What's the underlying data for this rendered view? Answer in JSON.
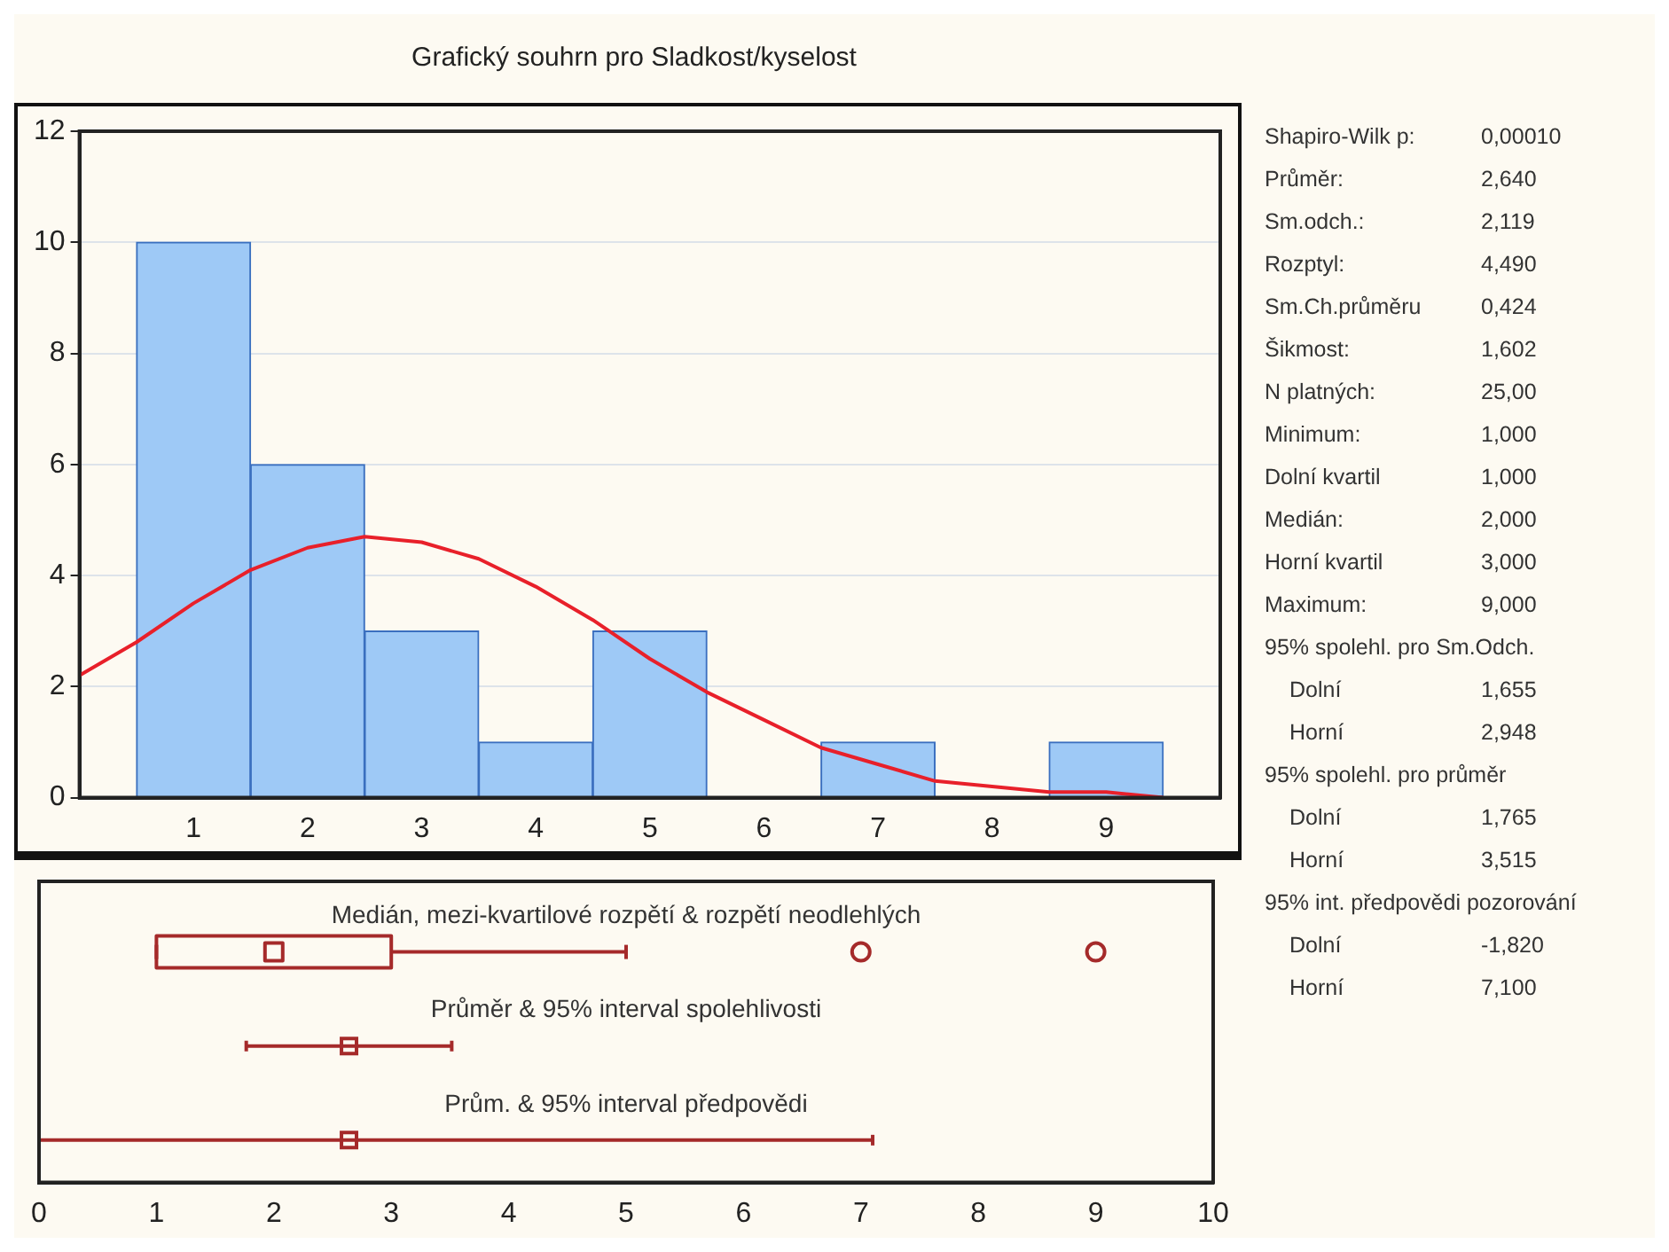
{
  "chart_data": [
    {
      "type": "histogram",
      "title": "Grafický souhrn pro Sladkost/kyselost",
      "bins": [
        0.5,
        1.5,
        2.5,
        3.5,
        4.5,
        5.5,
        6.5,
        7.5,
        8.5,
        9.5
      ],
      "values": [
        10,
        6,
        3,
        1,
        3,
        0,
        1,
        0,
        1
      ],
      "color": "#9ec9f6",
      "xlim": [
        0,
        10
      ],
      "xticks": [
        1,
        2,
        3,
        4,
        5,
        6,
        7,
        8,
        9
      ],
      "ylim": [
        0,
        12
      ],
      "yticks": [
        0,
        2,
        4,
        6,
        8,
        10,
        12
      ],
      "grid": "y",
      "legend": false,
      "marker": "none",
      "series": [
        {
          "type": "line",
          "color": "#e8202a",
          "x": [
            0,
            0.5,
            1,
            1.5,
            2,
            2.5,
            3,
            3.5,
            4,
            4.5,
            5,
            5.5,
            6,
            6.5,
            7,
            7.5,
            8,
            8.5,
            9,
            9.5
          ],
          "values": [
            2.2,
            2.8,
            3.5,
            4.1,
            4.5,
            4.7,
            4.6,
            4.3,
            3.8,
            3.2,
            2.5,
            1.9,
            1.4,
            0.9,
            0.6,
            0.3,
            0.2,
            0.1,
            0.1,
            0
          ]
        }
      ]
    },
    {
      "type": "box",
      "orientation": "horizontal",
      "categories": [
        "Medián, mezi-kvartilové rozpětí & rozpětí neodlehlých",
        "Průměr & 95% interval spolehlivosti",
        "Prům. & 95% interval předpovědi"
      ],
      "xlim": [
        0,
        10
      ],
      "xticks": [
        0,
        1,
        2,
        3,
        4,
        5,
        6,
        7,
        8,
        9,
        10
      ],
      "grid": false,
      "legend": false,
      "series": [
        {
          "type": "box",
          "color": "#a52a2a",
          "boxes": [
            {
              "low": 1,
              "q1": 1,
              "median": 2,
              "q3": 3,
              "high": 5,
              "outliers": [
                7,
                9
              ]
            },
            null,
            null
          ]
        },
        {
          "type": "scatter",
          "color": "#a52a2a",
          "marker": "square",
          "values": [
            null,
            2.64,
            2.64
          ],
          "errors": [
            null,
            [
              1.765,
              3.515
            ],
            [
              0,
              7.1
            ]
          ]
        }
      ]
    },
    {
      "type": "other",
      "annotations": [
        "Shapiro-Wilk p:",
        "0,00010",
        "Průměr:",
        "2,640",
        "Sm.odch.:",
        "2,119",
        "Rozptyl:",
        "4,490",
        "Sm.Ch.průměru",
        "0,424",
        "Šikmost:",
        "1,602",
        "N platných:",
        "25,00",
        "Minimum:",
        "1,000",
        "Dolní kvartil",
        "1,000",
        "Medián:",
        "2,000",
        "Horní kvartil",
        "3,000",
        "Maximum:",
        "9,000",
        "95% spolehl. pro Sm.Odch.",
        "Dolní",
        "1,655",
        "Horní",
        "2,948",
        "95% spolehl. pro průměr",
        "Dolní",
        "1,765",
        "Horní",
        "3,515",
        "95% int. předpovědi pozorování",
        "Dolní",
        "-1,820",
        "Horní",
        "7,100"
      ]
    }
  ]
}
